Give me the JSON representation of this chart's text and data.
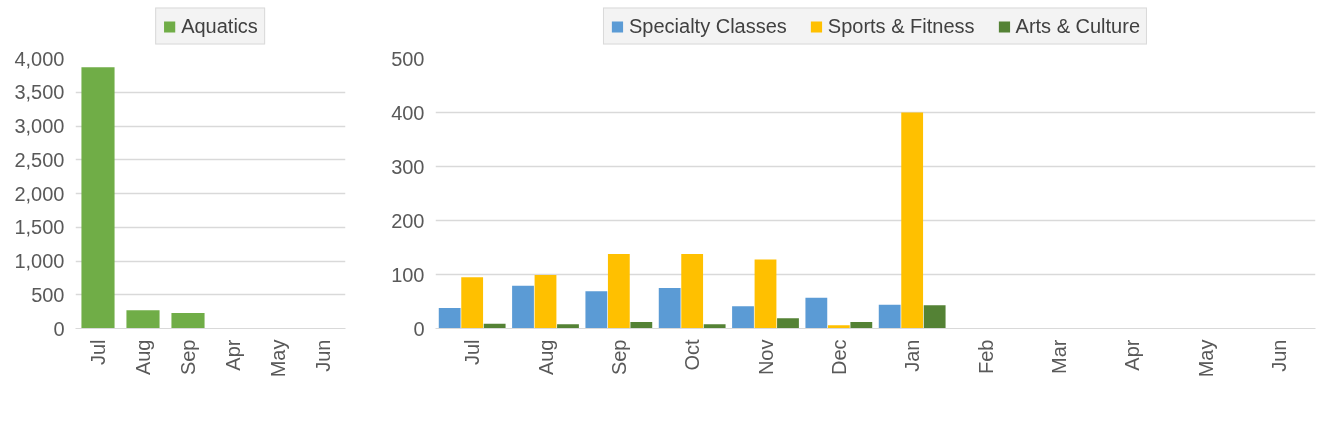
{
  "chart_data": [
    {
      "type": "bar",
      "categories": [
        "Jul",
        "Aug",
        "Sep",
        "Apr",
        "May",
        "Jun"
      ],
      "series": [
        {
          "name": "Aquatics",
          "color": "#70ad47",
          "values": [
            3870,
            270,
            230,
            null,
            null,
            null
          ]
        }
      ],
      "ylim": [
        0,
        4000
      ],
      "yticks": [
        0,
        {
          "value": 500,
          "label": "500"
        },
        {
          "value": 1000,
          "label": "1,000"
        },
        {
          "value": 1500,
          "label": "1,500"
        },
        {
          "value": 2000,
          "label": "2,000"
        },
        {
          "value": 2500,
          "label": "2,500"
        },
        {
          "value": 3000,
          "label": "3,000"
        },
        {
          "value": 3500,
          "label": "3,500"
        },
        {
          "value": 4000,
          "label": "4,000"
        }
      ],
      "grid": "y",
      "legend": "top"
    },
    {
      "type": "bar",
      "categories": [
        "Jul",
        "Aug",
        "Sep",
        "Oct",
        "Nov",
        "Dec",
        "Jan",
        "Feb",
        "Mar",
        "Apr",
        "May",
        "Jun"
      ],
      "series": [
        {
          "name": "Specialty Classes",
          "color": "#5b9bd5",
          "values": [
            38,
            79,
            69,
            75,
            41,
            57,
            44,
            null,
            null,
            null,
            null,
            null
          ]
        },
        {
          "name": "Sports & Fitness",
          "color": "#ffc000",
          "values": [
            95,
            99,
            138,
            138,
            128,
            6,
            400,
            null,
            null,
            null,
            null,
            null
          ]
        },
        {
          "name": "Arts & Culture",
          "color": "#548235",
          "values": [
            9,
            8,
            12,
            8,
            19,
            12,
            43,
            null,
            null,
            null,
            null,
            null
          ]
        }
      ],
      "ylim": [
        0,
        500
      ],
      "yticks": [
        0,
        100,
        200,
        300,
        400,
        500
      ],
      "grid": "y",
      "legend": "top"
    }
  ]
}
